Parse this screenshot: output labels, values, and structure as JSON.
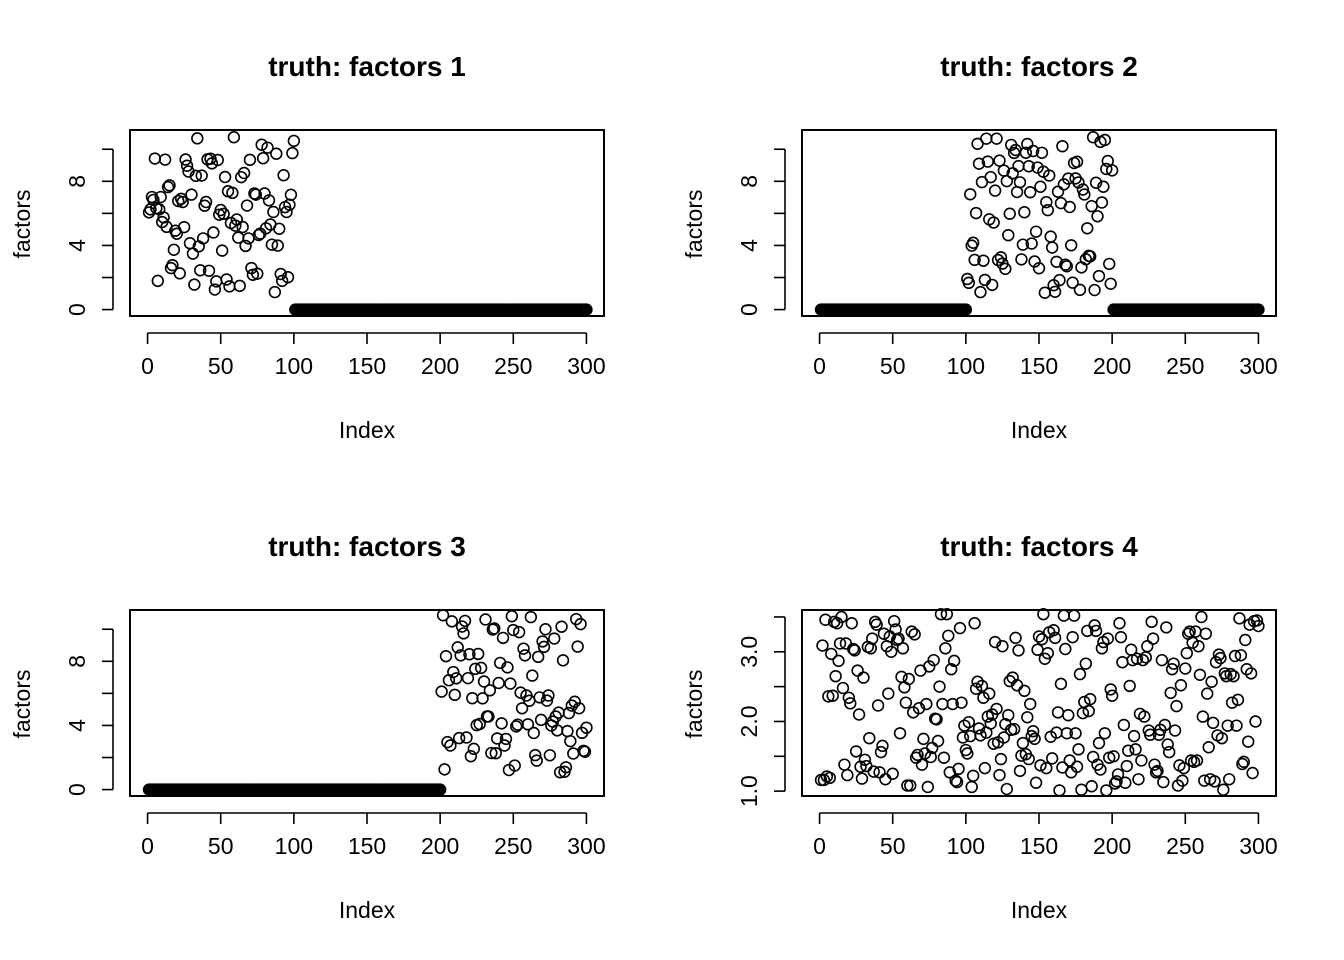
{
  "chart_data": [
    {
      "type": "scatter",
      "title": "truth: factors 1",
      "xlabel": "Index",
      "ylabel": "factors",
      "xlim": [
        -12,
        312
      ],
      "ylim": [
        -0.4,
        11.2
      ],
      "xticks": [
        0,
        50,
        100,
        150,
        200,
        250,
        300
      ],
      "xtick_labels": [
        "0",
        "50",
        "100",
        "150",
        "200",
        "250",
        "300"
      ],
      "yticks": [
        0,
        2,
        4,
        6,
        8,
        10
      ],
      "ytick_labels": [
        "0",
        "",
        "4",
        "",
        "8",
        ""
      ],
      "segments": [
        {
          "from": 1,
          "to": 100,
          "low": 1,
          "high": 10.9,
          "seed": 11
        },
        {
          "from": 101,
          "to": 300,
          "const": 0
        }
      ],
      "series": [
        {
          "x": [],
          "y": []
        }
      ]
    },
    {
      "type": "scatter",
      "title": "truth: factors 2",
      "xlabel": "Index",
      "ylabel": "factors",
      "xlim": [
        -12,
        312
      ],
      "ylim": [
        -0.4,
        11.2
      ],
      "xticks": [
        0,
        50,
        100,
        150,
        200,
        250,
        300
      ],
      "xtick_labels": [
        "0",
        "50",
        "100",
        "150",
        "200",
        "250",
        "300"
      ],
      "yticks": [
        0,
        2,
        4,
        6,
        8,
        10
      ],
      "ytick_labels": [
        "0",
        "",
        "4",
        "",
        "8",
        ""
      ],
      "segments": [
        {
          "from": 1,
          "to": 100,
          "const": 0
        },
        {
          "from": 101,
          "to": 200,
          "low": 1,
          "high": 10.8,
          "seed": 23
        },
        {
          "from": 201,
          "to": 300,
          "const": 0
        }
      ],
      "series": [
        {
          "x": [],
          "y": []
        }
      ]
    },
    {
      "type": "scatter",
      "title": "truth: factors 3",
      "xlabel": "Index",
      "ylabel": "factors",
      "xlim": [
        -12,
        312
      ],
      "ylim": [
        -0.4,
        11.2
      ],
      "xticks": [
        0,
        50,
        100,
        150,
        200,
        250,
        300
      ],
      "xtick_labels": [
        "0",
        "50",
        "100",
        "150",
        "200",
        "250",
        "300"
      ],
      "yticks": [
        0,
        2,
        4,
        6,
        8,
        10
      ],
      "ytick_labels": [
        "0",
        "",
        "4",
        "",
        "8",
        ""
      ],
      "segments": [
        {
          "from": 1,
          "to": 200,
          "const": 0
        },
        {
          "from": 201,
          "to": 300,
          "low": 1,
          "high": 10.9,
          "seed": 37
        }
      ],
      "series": [
        {
          "x": [],
          "y": []
        }
      ]
    },
    {
      "type": "scatter",
      "title": "truth: factors 4",
      "xlabel": "Index",
      "ylabel": "factors",
      "xlim": [
        -12,
        312
      ],
      "ylim": [
        0.93,
        3.6
      ],
      "xticks": [
        0,
        50,
        100,
        150,
        200,
        250,
        300
      ],
      "xtick_labels": [
        "0",
        "50",
        "100",
        "150",
        "200",
        "250",
        "300"
      ],
      "yticks": [
        1.0,
        1.5,
        2.0,
        2.5,
        3.0,
        3.5
      ],
      "ytick_labels": [
        "1.0",
        "",
        "2.0",
        "",
        "3.0",
        ""
      ],
      "segments": [
        {
          "from": 1,
          "to": 300,
          "low": 1.0,
          "high": 3.55,
          "seed": 53
        }
      ],
      "series": [
        {
          "x": [],
          "y": []
        }
      ]
    }
  ]
}
